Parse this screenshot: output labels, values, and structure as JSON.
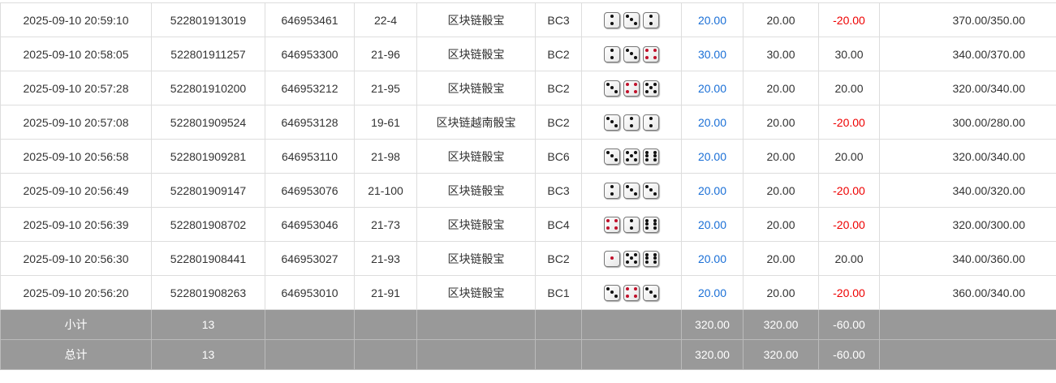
{
  "rows": [
    {
      "time": "2025-09-10 20:59:10",
      "order": "522801913019",
      "issue": "646953461",
      "table": "22-4",
      "game": "区块链骰宝",
      "bet": "BC3",
      "dice": [
        2,
        3,
        2
      ],
      "amount": "20.00",
      "valid": "20.00",
      "win": "-20.00",
      "balance": "370.00/350.00"
    },
    {
      "time": "2025-09-10 20:58:05",
      "order": "522801911257",
      "issue": "646953300",
      "table": "21-96",
      "game": "区块链骰宝",
      "bet": "BC2",
      "dice": [
        2,
        3,
        4
      ],
      "amount": "30.00",
      "valid": "30.00",
      "win": "30.00",
      "balance": "340.00/370.00"
    },
    {
      "time": "2025-09-10 20:57:28",
      "order": "522801910200",
      "issue": "646953212",
      "table": "21-95",
      "game": "区块链骰宝",
      "bet": "BC2",
      "dice": [
        3,
        4,
        5
      ],
      "amount": "20.00",
      "valid": "20.00",
      "win": "20.00",
      "balance": "320.00/340.00"
    },
    {
      "time": "2025-09-10 20:57:08",
      "order": "522801909524",
      "issue": "646953128",
      "table": "19-61",
      "game": "区块链越南骰宝",
      "bet": "BC2",
      "dice": [
        3,
        2,
        2
      ],
      "amount": "20.00",
      "valid": "20.00",
      "win": "-20.00",
      "balance": "300.00/280.00"
    },
    {
      "time": "2025-09-10 20:56:58",
      "order": "522801909281",
      "issue": "646953110",
      "table": "21-98",
      "game": "区块链骰宝",
      "bet": "BC6",
      "dice": [
        3,
        5,
        6
      ],
      "amount": "20.00",
      "valid": "20.00",
      "win": "20.00",
      "balance": "320.00/340.00"
    },
    {
      "time": "2025-09-10 20:56:49",
      "order": "522801909147",
      "issue": "646953076",
      "table": "21-100",
      "game": "区块链骰宝",
      "bet": "BC3",
      "dice": [
        2,
        3,
        3
      ],
      "amount": "20.00",
      "valid": "20.00",
      "win": "-20.00",
      "balance": "340.00/320.00"
    },
    {
      "time": "2025-09-10 20:56:39",
      "order": "522801908702",
      "issue": "646953046",
      "table": "21-73",
      "game": "区块链骰宝",
      "bet": "BC4",
      "dice": [
        4,
        2,
        6
      ],
      "amount": "20.00",
      "valid": "20.00",
      "win": "-20.00",
      "balance": "320.00/300.00"
    },
    {
      "time": "2025-09-10 20:56:30",
      "order": "522801908441",
      "issue": "646953027",
      "table": "21-93",
      "game": "区块链骰宝",
      "bet": "BC2",
      "dice": [
        1,
        5,
        6
      ],
      "amount": "20.00",
      "valid": "20.00",
      "win": "20.00",
      "balance": "340.00/360.00"
    },
    {
      "time": "2025-09-10 20:56:20",
      "order": "522801908263",
      "issue": "646953010",
      "table": "21-91",
      "game": "区块链骰宝",
      "bet": "BC1",
      "dice": [
        3,
        4,
        3
      ],
      "amount": "20.00",
      "valid": "20.00",
      "win": "-20.00",
      "balance": "360.00/340.00"
    }
  ],
  "subtotal": {
    "label": "小计",
    "count": "13",
    "amount": "320.00",
    "valid": "320.00",
    "win": "-60.00"
  },
  "total": {
    "label": "总计",
    "count": "13",
    "amount": "320.00",
    "valid": "320.00",
    "win": "-60.00"
  },
  "colors": {
    "amount": "#1a6fd6",
    "negative": "#e00000",
    "red_pips": "#c0102a"
  }
}
